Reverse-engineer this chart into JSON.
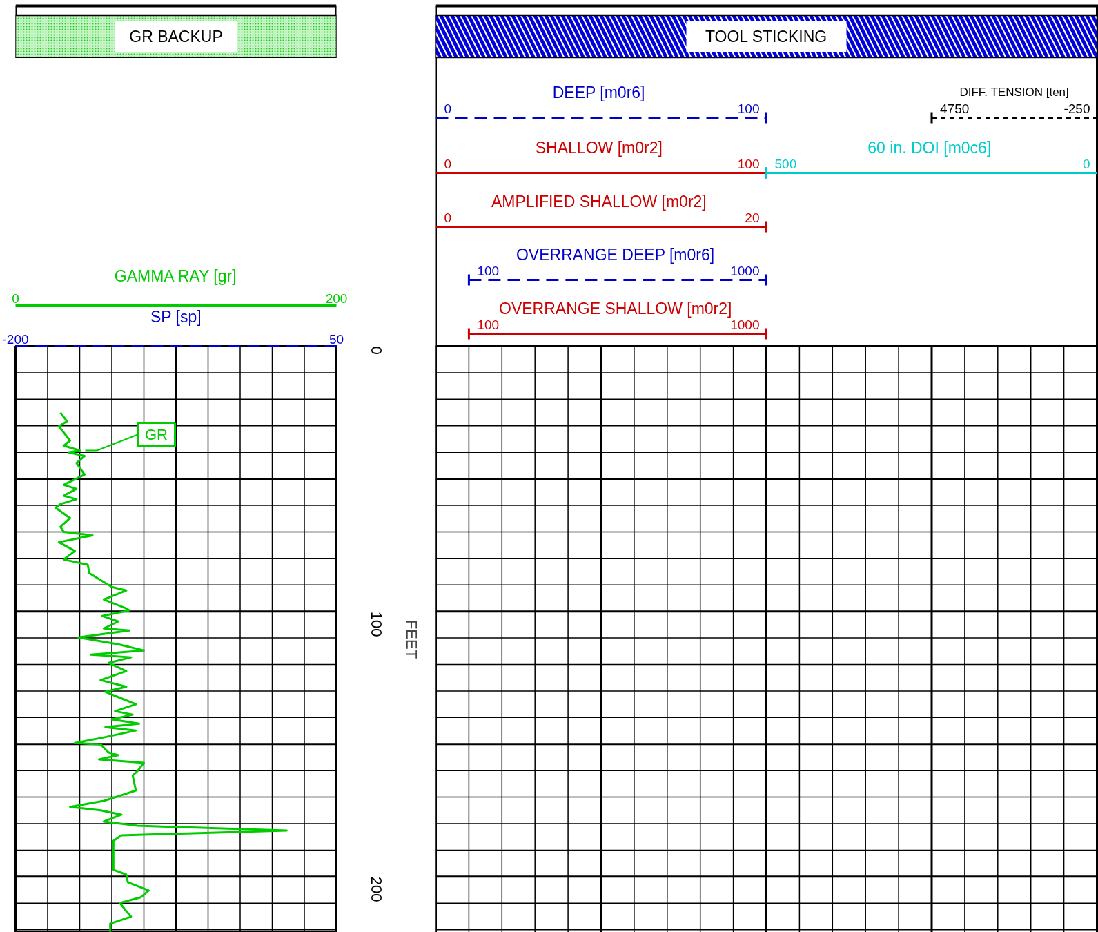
{
  "chart_data": [
    {
      "type": "line",
      "title": "GR BACKUP",
      "ylabel": "FEET",
      "grid": true,
      "line_style": "solid",
      "xlabel": "GAMMA RAY [gr]",
      "xlim": [
        0,
        200
      ],
      "xticks": [
        0,
        {
          "value": 20,
          "label": null
        },
        {
          "value": 40,
          "label": null
        },
        {
          "value": 60,
          "label": null
        },
        {
          "value": 80,
          "label": null
        },
        {
          "value": 100,
          "label": null
        },
        {
          "value": 120,
          "label": null
        },
        {
          "value": 140,
          "label": null
        },
        {
          "value": 160,
          "label": null
        },
        {
          "value": 180,
          "label": null
        },
        200
      ],
      "x2label": "SP [sp]",
      "x2lim": [
        -200,
        50
      ],
      "x2ticks": [
        -200,
        50
      ],
      "ylim": [
        221,
        0
      ],
      "yticks": [
        0,
        {
          "value": 10,
          "label": null
        },
        {
          "value": 20,
          "label": null
        },
        {
          "value": 30,
          "label": null
        },
        {
          "value": 40,
          "label": null
        },
        {
          "value": 50,
          "label": null
        },
        {
          "value": 60,
          "label": null
        },
        {
          "value": 70,
          "label": null
        },
        {
          "value": 80,
          "label": null
        },
        {
          "value": 90,
          "label": null
        },
        100,
        {
          "value": 110,
          "label": null
        },
        {
          "value": 120,
          "label": null
        },
        {
          "value": 130,
          "label": null
        },
        {
          "value": 140,
          "label": null
        },
        {
          "value": 150,
          "label": null
        },
        {
          "value": 160,
          "label": null
        },
        {
          "value": 170,
          "label": null
        },
        {
          "value": 180,
          "label": null
        },
        {
          "value": 190,
          "label": null
        },
        200,
        {
          "value": 210,
          "label": null
        },
        {
          "value": 220,
          "label": null
        }
      ],
      "series": [
        {
          "name": "GR",
          "color": "#00cc00",
          "x": [
            28,
            32,
            27,
            34,
            30,
            40,
            33,
            43,
            38,
            43,
            30,
            38,
            30,
            38,
            28,
            25,
            34,
            28,
            30,
            48,
            27,
            37,
            30,
            45,
            46,
            60,
            69,
            55,
            68,
            71,
            54,
            64,
            55,
            71,
            39,
            64,
            80,
            47,
            72,
            58,
            69,
            53,
            69,
            56,
            64,
            75,
            62,
            73,
            60,
            77,
            56,
            75,
            55,
            37,
            53,
            58,
            64,
            52,
            80,
            76,
            73,
            75,
            66,
            55,
            34,
            53,
            66,
            55,
            76,
            169,
            66,
            61,
            61,
            69,
            70,
            83,
            78,
            65,
            69,
            72,
            59,
            59
          ],
          "values": [
            25.0,
            28.3,
            30.2,
            35.6,
            37.5,
            39.3,
            40.0,
            41.4,
            44.0,
            48.4,
            52.3,
            53.8,
            56.4,
            57.7,
            59.5,
            60.9,
            64.8,
            68.1,
            70.0,
            71.3,
            73.9,
            77.2,
            80.4,
            82.4,
            85.6,
            90.8,
            92.1,
            95.5,
            98.6,
            99.6,
            101.7,
            103.8,
            106.4,
            107.2,
            109.8,
            112.4,
            114.7,
            116.3,
            117.3,
            119.4,
            122.5,
            125.9,
            128.4,
            130.3,
            132.3,
            135.0,
            137.6,
            138.9,
            140.7,
            142.3,
            143.6,
            144.9,
            147.5,
            149.6,
            150.1,
            153.2,
            154.2,
            155.8,
            157.1,
            160.2,
            161.8,
            167.5,
            169.3,
            171.4,
            173.7,
            175.0,
            176.6,
            179.2,
            180.8,
            182.6,
            184.4,
            186.5,
            197.4,
            199.2,
            202.1,
            205.2,
            207.8,
            209.9,
            213.0,
            215.1,
            217.7,
            220.8
          ]
        }
      ]
    },
    {
      "type": "other",
      "title": "TOOL STICKING",
      "annotations": [
        "DEEP  [m0r6]",
        "0",
        "100",
        "SHALLOW  [m0r2]",
        "0",
        "100",
        "AMPLIFIED SHALLOW  [m0r2]",
        "0",
        "20",
        "OVERRANGE DEEP  [m0r6]",
        "100",
        "1000",
        "OVERRANGE SHALLOW  [m0r2]",
        "100",
        "1000",
        "60 in. DOI  [m0c6]",
        "500",
        "0",
        "DIFF. TENSION [ten]",
        "4750",
        "-250"
      ]
    }
  ]
}
